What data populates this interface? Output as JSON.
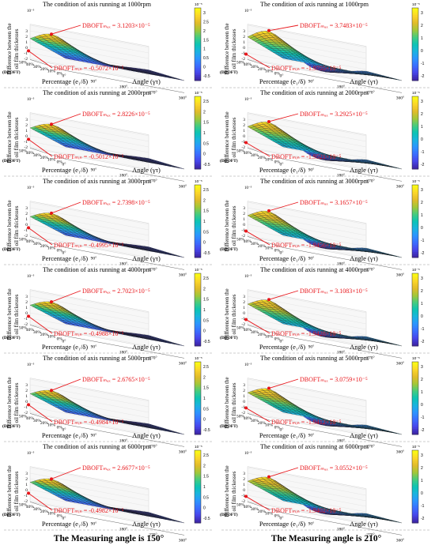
{
  "colormap": [
    "#3e26a8",
    "#4746eb",
    "#3b6fff",
    "#2c96fe",
    "#1ab4df",
    "#0cc4b3",
    "#47cc7e",
    "#a4c738",
    "#e2bb2a",
    "#fbd62a",
    "#f9fb15"
  ],
  "annotation_color": "#e8161b",
  "footer": {
    "left": "The Measuring angle is 150°",
    "right": "The Measuring angle is 210°"
  },
  "chart_data": [
    {
      "type": "surface",
      "column": "150°",
      "title": "The condition of axis running at 1000rpm",
      "zlabel": [
        "Difference between the",
        "oil film thickesses"
      ],
      "ylabel": "Percentage (e₁/δ)",
      "xlabel": "Angle (γτ)",
      "y_ticks": [
        "0%",
        "10%",
        "20%",
        "30%",
        "40%",
        "50%"
      ],
      "x_ticks": [
        "0°",
        "90°",
        "180°",
        "270°",
        "360°"
      ],
      "z_tag": "(DBOFT)",
      "max_label": "DBOFTₘₐₓ = 3.1203×10⁻⁵",
      "min_label": "DBOFTₘᵢₙ = -0.5072×10⁻⁵",
      "max": 3.1203,
      "min": -0.5072,
      "zexp": "×10⁻⁵",
      "colorbar_ticks": [
        "3",
        "2.5",
        "2",
        "1.5",
        "1",
        "0.5",
        "0",
        "-0.5"
      ]
    },
    {
      "type": "surface",
      "column": "210°",
      "title": "The condition of axis running at 1000rpm",
      "zlabel": [
        "Difference between the",
        "oil film thickesses"
      ],
      "ylabel": "Percentage (e₁/δ)",
      "xlabel": "Angle (γτ)",
      "y_ticks": [
        "0%",
        "10%",
        "20%",
        "30%",
        "40%",
        "50%"
      ],
      "x_ticks": [
        "0°",
        "90°",
        "180°",
        "270°",
        "360°"
      ],
      "z_tag": "(DBOFT)",
      "max_label": "DBOFTₘₐₓ = 3.7483×10⁻⁵",
      "min_label": "DBOFTₘᵢₙ = -1.9755×10⁻⁵",
      "max": 3.7483,
      "min": -1.9755,
      "zexp": "×10⁻⁵",
      "colorbar_ticks": [
        "3",
        "2",
        "1",
        "0",
        "-1",
        "-2"
      ]
    },
    {
      "type": "surface",
      "column": "150°",
      "title": "The condition of axis running at 2000rpm",
      "zlabel": [
        "Difference between the",
        "oil film thickesses"
      ],
      "ylabel": "Percentage (e₁/δ)",
      "xlabel": "Angle (γτ)",
      "y_ticks": [
        "0%",
        "10%",
        "20%",
        "30%",
        "40%",
        "50%"
      ],
      "x_ticks": [
        "0°",
        "90°",
        "180°",
        "270°",
        "360°"
      ],
      "z_tag": "(DBOFT)",
      "max_label": "DBOFTₘₐₓ = 2.8226×10⁻⁵",
      "min_label": "DBOFTₘᵢₙ = -0.5012×10⁻⁵",
      "max": 2.8226,
      "min": -0.5012,
      "zexp": "×10⁻⁵",
      "colorbar_ticks": [
        "2.5",
        "2",
        "1.5",
        "1",
        "0.5",
        "0",
        "-0.5"
      ]
    },
    {
      "type": "surface",
      "column": "210°",
      "title": "The condition of axis running at 2000rpm",
      "zlabel": [
        "Difference between the",
        "oil film thickesses"
      ],
      "ylabel": "Percentage (e₁/δ)",
      "xlabel": "Angle (γτ)",
      "y_ticks": [
        "0%",
        "10%",
        "20%",
        "30%",
        "40%",
        "50%"
      ],
      "x_ticks": [
        "0°",
        "90°",
        "180°",
        "270°",
        "360°"
      ],
      "z_tag": "(DBOFT)",
      "max_label": "DBOFTₘₐₓ = 3.2925×10⁻⁵",
      "min_label": "DBOFTₘᵢₙ = -1.9521×10⁻⁵",
      "max": 3.2925,
      "min": -1.9521,
      "zexp": "×10⁻⁵",
      "colorbar_ticks": [
        "3",
        "2",
        "1",
        "0",
        "-1",
        "-2"
      ]
    },
    {
      "type": "surface",
      "column": "150°",
      "title": "The condition of axis running at 3000rpm",
      "zlabel": [
        "Difference between the",
        "oil film thickesses"
      ],
      "ylabel": "Percentage (e₁/δ)",
      "xlabel": "Angle (γτ)",
      "y_ticks": [
        "0%",
        "10%",
        "20%",
        "30%",
        "40%",
        "50%"
      ],
      "x_ticks": [
        "0°",
        "90°",
        "180°",
        "270°",
        "360°"
      ],
      "z_tag": "(DBOFT)",
      "max_label": "DBOFTₘₐₓ = 2.7398×10⁻⁵",
      "min_label": "DBOFTₘᵢₙ = -0.4995×10⁻⁵",
      "max": 2.7398,
      "min": -0.4995,
      "zexp": "×10⁻⁵",
      "colorbar_ticks": [
        "2.5",
        "2",
        "1.5",
        "1",
        "0.5",
        "0",
        "-0.5"
      ]
    },
    {
      "type": "surface",
      "column": "210°",
      "title": "The condition of axis running at 3000rpm",
      "zlabel": [
        "Difference between the",
        "oil film thickesses"
      ],
      "ylabel": "Percentage (e₁/δ)",
      "xlabel": "Angle (γτ)",
      "y_ticks": [
        "0%",
        "10%",
        "20%",
        "30%",
        "40%",
        "50%"
      ],
      "x_ticks": [
        "0°",
        "90°",
        "180°",
        "270°",
        "360°"
      ],
      "z_tag": "(DBOFT)",
      "max_label": "DBOFTₘₐₓ = 3.1657×10⁻⁵",
      "min_label": "DBOFTₘᵢₙ = -1.9456×10⁻⁵",
      "max": 3.1657,
      "min": -1.9456,
      "zexp": "×10⁻⁵",
      "colorbar_ticks": [
        "3",
        "2",
        "1",
        "0",
        "-1",
        "-2"
      ]
    },
    {
      "type": "surface",
      "column": "150°",
      "title": "The condition of axis running at 4000rpm",
      "zlabel": [
        "Difference between the",
        "oil film thickesses"
      ],
      "ylabel": "Percentage (e₁/δ)",
      "xlabel": "Angle (γτ)",
      "y_ticks": [
        "0%",
        "10%",
        "20%",
        "30%",
        "40%",
        "50%"
      ],
      "x_ticks": [
        "0°",
        "90°",
        "180°",
        "270°",
        "360°"
      ],
      "z_tag": "(DBOFT)",
      "max_label": "DBOFTₘₐₓ = 2.7023×10⁻⁵",
      "min_label": "DBOFTₘᵢₙ = -0.4988×10⁻⁵",
      "max": 2.7023,
      "min": -0.4988,
      "zexp": "×10⁻⁵",
      "colorbar_ticks": [
        "2.5",
        "2",
        "1.5",
        "1",
        "0.5",
        "0",
        "-0.5"
      ]
    },
    {
      "type": "surface",
      "column": "210°",
      "title": "The condition of axis running at 4000rpm",
      "zlabel": [
        "Difference between the",
        "oil film thickesses"
      ],
      "ylabel": "Percentage (e₁/δ)",
      "xlabel": "Angle (γτ)",
      "y_ticks": [
        "0%",
        "10%",
        "20%",
        "30%",
        "40%",
        "50%"
      ],
      "x_ticks": [
        "0°",
        "90°",
        "180°",
        "270°",
        "360°"
      ],
      "z_tag": "(DBOFT)",
      "max_label": "DBOFTₘₐₓ = 3.1083×10⁻⁵",
      "min_label": "DBOFTₘᵢₙ = -1.9428×10⁻⁵",
      "max": 3.1083,
      "min": -1.9428,
      "zexp": "×10⁻⁵",
      "colorbar_ticks": [
        "3",
        "2",
        "1",
        "0",
        "-1",
        "-2"
      ]
    },
    {
      "type": "surface",
      "column": "150°",
      "title": "The condition of axis running at 5000rpm",
      "zlabel": [
        "Difference between the",
        "oil film thickesses"
      ],
      "ylabel": "Percentage (e₁/δ)",
      "xlabel": "Angle (γτ)",
      "y_ticks": [
        "0%",
        "10%",
        "20%",
        "30%",
        "40%",
        "50%"
      ],
      "x_ticks": [
        "0°",
        "90°",
        "180°",
        "270°",
        "360°"
      ],
      "z_tag": "(DBOFT)",
      "max_label": "DBOFTₘₐₓ = 2.6765×10⁻⁵",
      "min_label": "DBOFTₘᵢₙ = -0.4984×10⁻⁵",
      "max": 2.6765,
      "min": -0.4984,
      "zexp": "×10⁻⁵",
      "colorbar_ticks": [
        "2.5",
        "2",
        "1.5",
        "1",
        "0.5",
        "0",
        "-0.5"
      ]
    },
    {
      "type": "surface",
      "column": "210°",
      "title": "The condition of axis running at 5000rpm",
      "zlabel": [
        "Difference between the",
        "oil film thickesses"
      ],
      "ylabel": "Percentage (e₁/δ)",
      "xlabel": "Angle (γτ)",
      "y_ticks": [
        "0%",
        "10%",
        "20%",
        "30%",
        "40%",
        "50%"
      ],
      "x_ticks": [
        "0°",
        "90°",
        "180°",
        "270°",
        "360°"
      ],
      "z_tag": "(DBOFT)",
      "max_label": "DBOFTₘₐₓ = 3.0759×10⁻⁵",
      "min_label": "DBOFTₘᵢₙ = -1.9412×10⁻⁵",
      "max": 3.0759,
      "min": -1.9412,
      "zexp": "×10⁻⁵",
      "colorbar_ticks": [
        "3",
        "2",
        "1",
        "0",
        "-1",
        "-2"
      ]
    },
    {
      "type": "surface",
      "column": "150°",
      "title": "The condition of axis running at 6000rpm",
      "zlabel": [
        "Difference between the",
        "oil film thickesses"
      ],
      "ylabel": "Percentage (e₁/δ)",
      "xlabel": "Angle (γτ)",
      "y_ticks": [
        "0%",
        "10%",
        "20%",
        "30%",
        "40%",
        "50%"
      ],
      "x_ticks": [
        "0°",
        "90°",
        "180°",
        "270°",
        "360°"
      ],
      "z_tag": "(DBOFT)",
      "max_label": "DBOFTₘₐₓ = 2.6677×10⁻⁵",
      "min_label": "DBOFTₘᵢₙ = -0.4982×10⁻⁵",
      "max": 2.6677,
      "min": -0.4982,
      "zexp": "×10⁻⁵",
      "colorbar_ticks": [
        "2.5",
        "2",
        "1.5",
        "1",
        "0.5",
        "0",
        "-0.5"
      ]
    },
    {
      "type": "surface",
      "column": "210°",
      "title": "The condition of axis running at 6000rpm",
      "zlabel": [
        "Difference between the",
        "oil film thickesses"
      ],
      "ylabel": "Percentage (e₁/δ)",
      "xlabel": "Angle (γτ)",
      "y_ticks": [
        "0%",
        "10%",
        "20%",
        "30%",
        "40%",
        "50%"
      ],
      "x_ticks": [
        "0°",
        "90°",
        "180°",
        "270°",
        "360°"
      ],
      "z_tag": "(DBOFT)",
      "max_label": "DBOFTₘₐₓ = 3.0552×10⁻⁵",
      "min_label": "DBOFTₘᵢₙ = -1.9402×10⁻⁵",
      "max": 3.0552,
      "min": -1.9402,
      "zexp": "×10⁻⁵",
      "colorbar_ticks": [
        "3",
        "2",
        "1",
        "0",
        "-1",
        "-2"
      ]
    }
  ]
}
